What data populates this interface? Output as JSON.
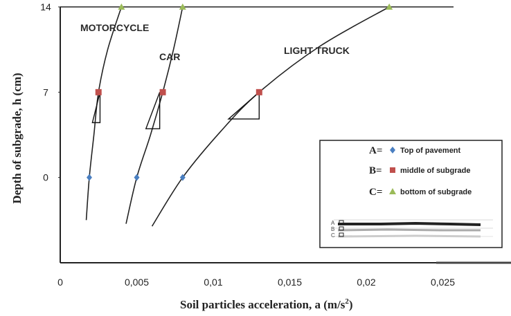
{
  "chart_data": {
    "type": "line",
    "xlabel": "Soil particles acceleration, a (m/s",
    "xlabel_sup": "2",
    "xlabel_close": ")",
    "ylabel": "Depth of subgrade, h (cm)",
    "x_ticks": [
      "0",
      "0,005",
      "0,01",
      "0,015",
      "0,02",
      "0,025"
    ],
    "x_tick_values": [
      0,
      0.005,
      0.01,
      0.015,
      0.02,
      0.025
    ],
    "y_ticks": [
      "0",
      "7",
      "14"
    ],
    "y_tick_values": [
      0,
      7,
      14
    ],
    "xlim": [
      0,
      0.03
    ],
    "ylim": [
      -7,
      14
    ],
    "grid": false,
    "legend_position": "bottom-right",
    "series": [
      {
        "name": "MOTORCYCLE",
        "points": [
          {
            "x": 0.0019,
            "y": 0,
            "marker": "A"
          },
          {
            "x": 0.0025,
            "y": 7,
            "marker": "B"
          },
          {
            "x": 0.004,
            "y": 14,
            "marker": "C"
          }
        ],
        "curve": [
          [
            0.0017,
            -3.5
          ],
          [
            0.0019,
            0
          ],
          [
            0.0022,
            3.5
          ],
          [
            0.0025,
            7
          ],
          [
            0.0031,
            10.5
          ],
          [
            0.004,
            14
          ]
        ],
        "tangent": [
          [
            0.0021,
            4.5
          ],
          [
            0.0026,
            7
          ]
        ]
      },
      {
        "name": "CAR",
        "points": [
          {
            "x": 0.005,
            "y": 0,
            "marker": "A"
          },
          {
            "x": 0.0067,
            "y": 7,
            "marker": "B"
          },
          {
            "x": 0.008,
            "y": 14,
            "marker": "C"
          }
        ],
        "curve": [
          [
            0.0043,
            -3.8
          ],
          [
            0.005,
            0
          ],
          [
            0.0059,
            3.5
          ],
          [
            0.0067,
            7
          ],
          [
            0.0074,
            10.5
          ],
          [
            0.008,
            14
          ]
        ],
        "tangent": [
          [
            0.0056,
            4.0
          ],
          [
            0.0065,
            7
          ]
        ]
      },
      {
        "name": "LIGHT TRUCK",
        "points": [
          {
            "x": 0.008,
            "y": 0,
            "marker": "A"
          },
          {
            "x": 0.013,
            "y": 7,
            "marker": "B"
          },
          {
            "x": 0.0215,
            "y": 14,
            "marker": "C"
          }
        ],
        "curve": [
          [
            0.006,
            -4.0
          ],
          [
            0.008,
            0
          ],
          [
            0.0105,
            3.8
          ],
          [
            0.013,
            7
          ],
          [
            0.017,
            10.8
          ],
          [
            0.0215,
            14
          ]
        ],
        "tangent": [
          [
            0.011,
            4.8
          ],
          [
            0.013,
            7
          ]
        ]
      }
    ],
    "legend": [
      {
        "key": "A=",
        "label": "Top of pavement",
        "marker": "diamond",
        "color": "#4a7fc1"
      },
      {
        "key": "B=",
        "label": "middle of subgrade",
        "marker": "square",
        "color": "#c0504d"
      },
      {
        "key": "C=",
        "label": "bottom of subgrade",
        "marker": "triangle",
        "color": "#9bbb59"
      }
    ],
    "inset_letters": [
      "A",
      "B",
      "C"
    ],
    "colors": {
      "line": "#222222",
      "axis": "#222222"
    }
  }
}
